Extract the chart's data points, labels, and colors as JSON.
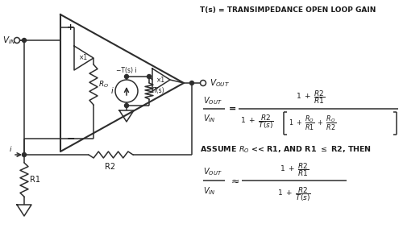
{
  "bg_color": "#ffffff",
  "line_color": "#2d2d2d",
  "text_color": "#1a1a1a",
  "title": "T(s) = TRANSIMPEDANCE OPEN LOOP GAIN",
  "assume": "ASSUME R",
  "assume2": " << R1, AND R1 ≤ R2, THEN"
}
